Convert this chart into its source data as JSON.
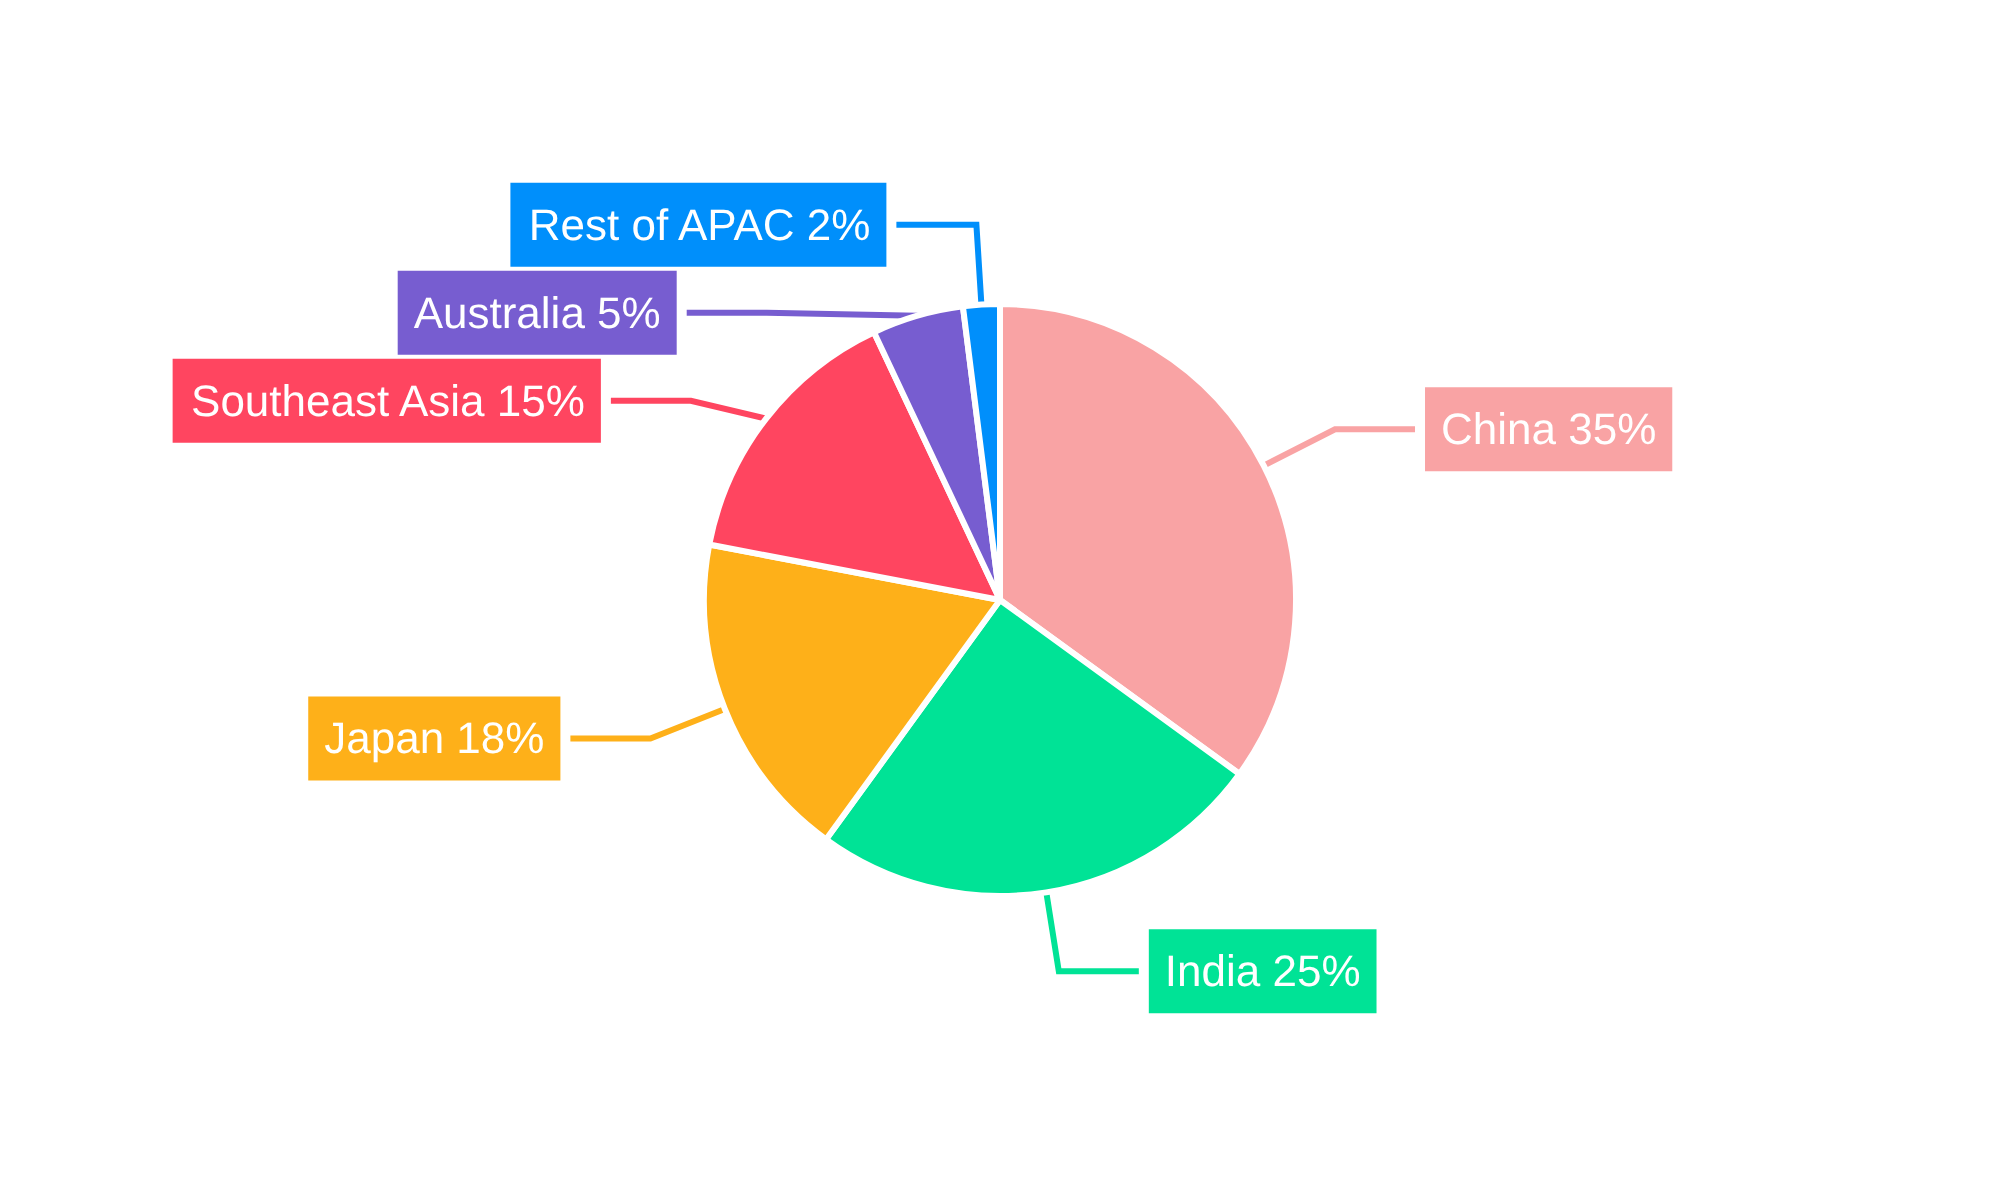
{
  "chart_data": {
    "type": "pie",
    "categories": [
      "China",
      "India",
      "Japan",
      "Southeast Asia",
      "Australia",
      "Rest of APAC"
    ],
    "values": [
      35,
      25,
      18,
      15,
      5,
      2
    ],
    "value_labels": [
      "35%",
      "25%",
      "18%",
      "15%",
      "5%",
      "2%"
    ],
    "colors": [
      "#f9a3a4",
      "#00e396",
      "#feb019",
      "#ff4560",
      "#775dd0",
      "#008ffb"
    ],
    "legend": false
  }
}
